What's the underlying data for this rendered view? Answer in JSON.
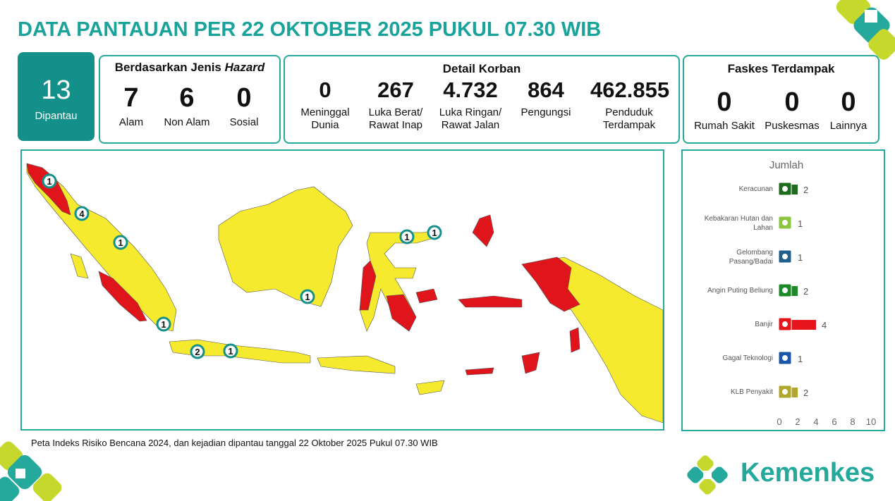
{
  "header": {
    "title": "DATA PANTAUAN PER 22 OKTOBER 2025 PUKUL 07.30 WIB"
  },
  "monitored": {
    "value": 13,
    "label": "Dipantau"
  },
  "hazard": {
    "title": "Berdasarkan Jenis ",
    "title_emphasis": "Hazard",
    "items": [
      {
        "value": 7,
        "label": "Alam"
      },
      {
        "value": 6,
        "label": "Non Alam"
      },
      {
        "value": 0,
        "label": "Sosial"
      }
    ]
  },
  "casualties": {
    "title": "Detail Korban",
    "items": [
      {
        "value": "0",
        "label": "Meninggal\nDunia"
      },
      {
        "value": "267",
        "label": "Luka Berat/\nRawat Inap"
      },
      {
        "value": "4.732",
        "label": "Luka Ringan/\nRawat Jalan"
      },
      {
        "value": "864",
        "label": "Pengungsi"
      },
      {
        "value": "462.855",
        "label": "Penduduk\nTerdampak"
      }
    ]
  },
  "facilities": {
    "title": "Faskes Terdampak",
    "items": [
      {
        "value": 0,
        "label": "Rumah Sakit"
      },
      {
        "value": 0,
        "label": "Puskesmas"
      },
      {
        "value": 0,
        "label": "Lainnya"
      }
    ]
  },
  "map": {
    "markers": [
      1,
      4,
      1,
      1,
      1,
      2,
      1,
      1,
      1
    ],
    "caption": "Peta Indeks Risiko Bencana 2024, dan kejadian dipantau tanggal 22 Oktober 2025 Pukul 07.30 WIB"
  },
  "brand": "Kemenkes",
  "chart_data": {
    "type": "bar",
    "orientation": "horizontal",
    "xlabel": "Jumlah",
    "categories": [
      "Keracunan",
      "Kebakaran Hutan dan\nLahan",
      "Gelombang\nPasang/Badai",
      "Angin Puting Beliung",
      "Banjir",
      "Gagal Teknologi",
      "KLB Penyakit"
    ],
    "values": [
      2,
      1,
      1,
      2,
      4,
      1,
      2
    ],
    "colors": [
      "#1e6b1e",
      "#8cc63f",
      "#1f5f8b",
      "#1d8a2a",
      "#e8141b",
      "#1a56a8",
      "#b2a72e"
    ],
    "xlim": [
      0,
      10
    ],
    "xticks": [
      0,
      2,
      4,
      6,
      8,
      10
    ]
  }
}
